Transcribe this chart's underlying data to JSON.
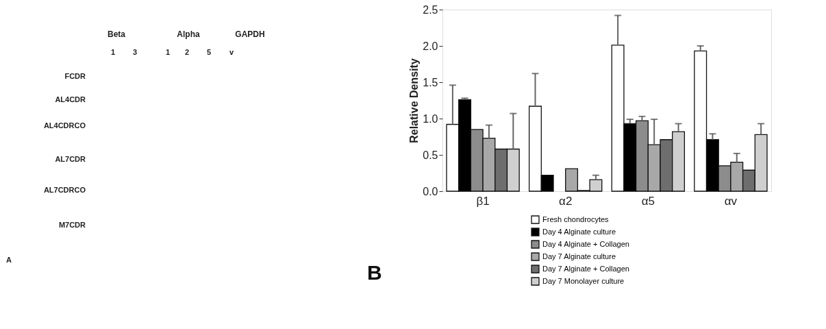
{
  "chart_data": [
    {
      "type": "other",
      "annotations": [
        "Beta",
        "Alpha",
        "GAPDH",
        "1",
        "3",
        "1",
        "2",
        "5",
        "v",
        "FCDR",
        "AL4CDR",
        "AL4CDRCO",
        "AL7CDR",
        "AL7CDRCO",
        "M7CDR",
        "A"
      ]
    },
    {
      "type": "bar",
      "categories": [
        "β1",
        "α2",
        "α5",
        "αv"
      ],
      "ylabel": "Relative Density",
      "ylim": [
        0,
        2.5
      ],
      "yticks": [
        {
          "value": 0,
          "label": "0.0"
        },
        {
          "value": 0.5,
          "label": "0.5"
        },
        {
          "value": 1,
          "label": "1.0"
        },
        {
          "value": 1.5,
          "label": "1.5"
        },
        {
          "value": 2,
          "label": "2.0"
        },
        {
          "value": 2.5,
          "label": "2.5"
        }
      ],
      "grid": false,
      "legend": "bottom",
      "annotations": [
        "B"
      ],
      "series": [
        {
          "name": "Fresh chondrocytes",
          "color": "#ffffff",
          "values": [
            0.92,
            1.17,
            2.01,
            1.93
          ],
          "errors": [
            0.54,
            0.45,
            0.41,
            0.07
          ]
        },
        {
          "name": "Day 4 Alginate culture",
          "color": "#000000",
          "values": [
            1.26,
            0.22,
            0.93,
            0.71
          ],
          "errors": [
            0.02,
            null,
            0.06,
            0.08
          ]
        },
        {
          "name": "Day 4 Alginate + Collagen",
          "color": "#8c8c8c",
          "values": [
            0.85,
            null,
            0.97,
            0.35
          ],
          "errors": [
            null,
            null,
            0.06,
            null
          ]
        },
        {
          "name": "Day 7 Alginate culture",
          "color": "#a8a8a8",
          "values": [
            0.73,
            0.31,
            0.64,
            0.4
          ],
          "errors": [
            0.18,
            null,
            0.35,
            0.12
          ]
        },
        {
          "name": "Day 7 Alginate + Collagen",
          "color": "#6e6e6e",
          "values": [
            0.58,
            0.01,
            0.71,
            0.29
          ],
          "errors": [
            null,
            null,
            null,
            null
          ]
        },
        {
          "name": "Day 7 Monolayer culture",
          "color": "#cfcfcf",
          "values": [
            0.58,
            0.16,
            0.82,
            0.78
          ],
          "errors": [
            0.49,
            0.06,
            0.11,
            0.15
          ]
        }
      ]
    }
  ]
}
